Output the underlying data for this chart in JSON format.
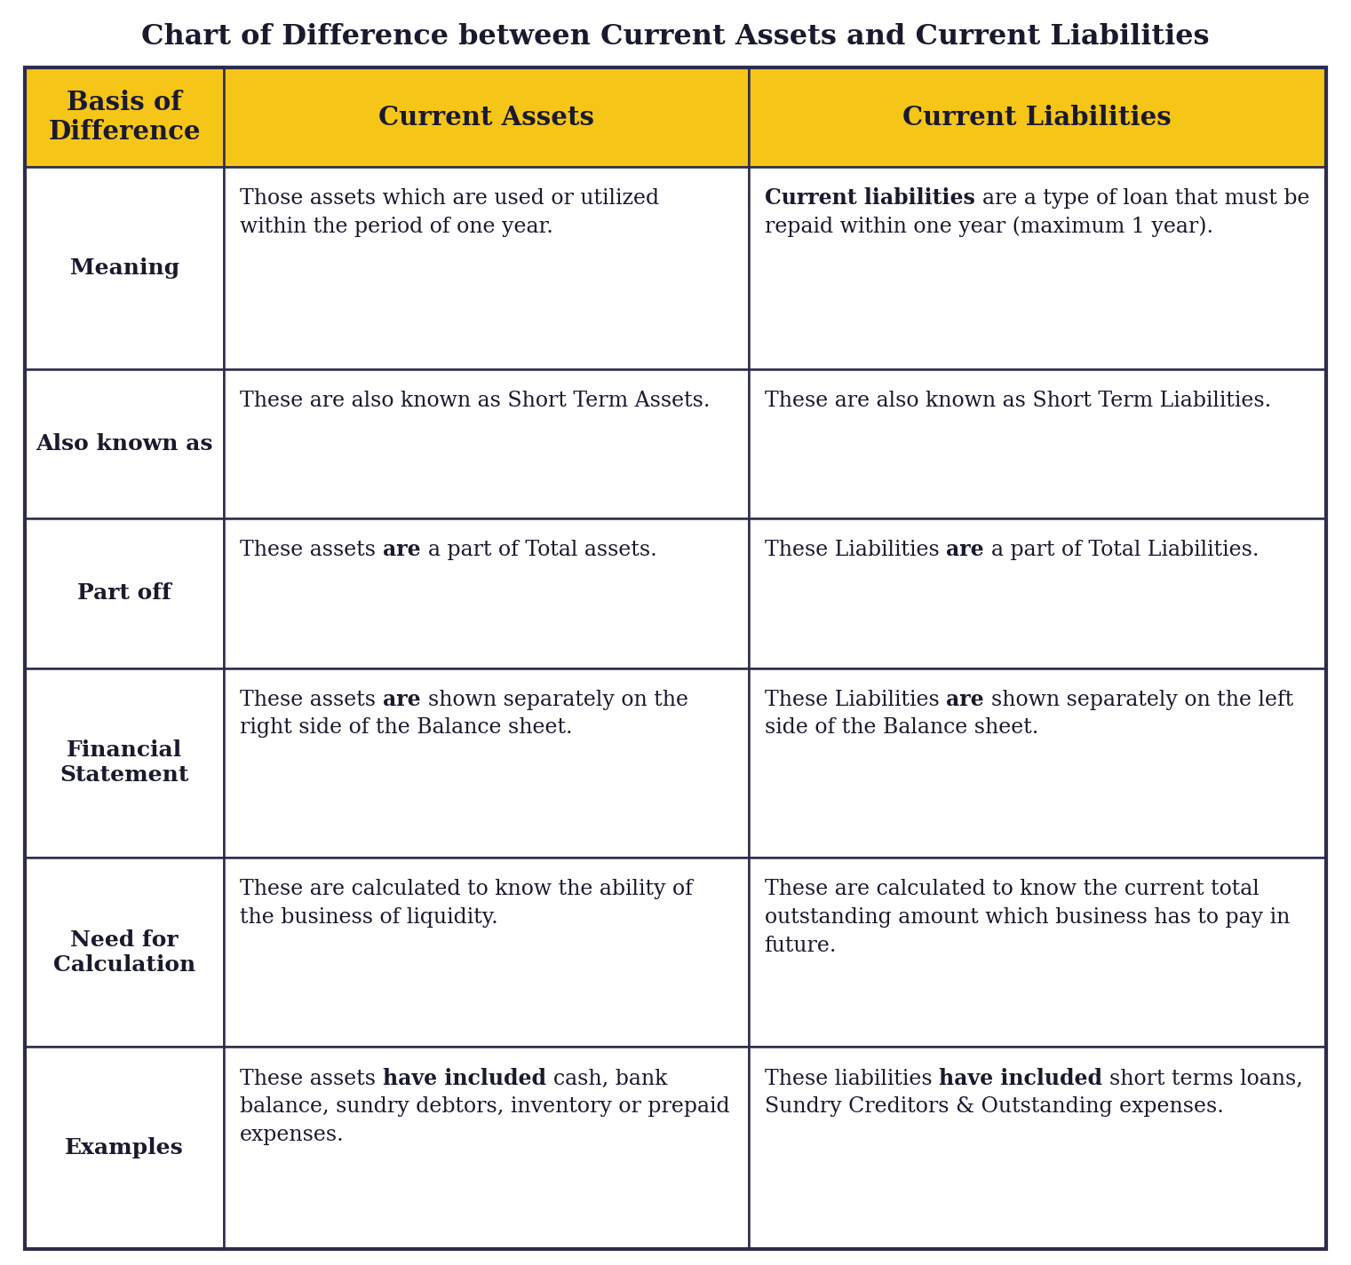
{
  "title": "Chart of Difference between Current Assets and Current Liabilities",
  "title_color": "#1a1a2e",
  "header_bg": "#f5c518",
  "header_text_color": "#1a1a2e",
  "row_bg": "#ffffff",
  "border_color": "#2c2c4a",
  "col_headers": [
    "Basis of\nDifference",
    "Current Assets",
    "Current Liabilities"
  ],
  "rows": [
    {
      "label": "Meaning",
      "col1": [
        [
          "Those assets which are used or utilized within the period of one year.",
          false
        ]
      ],
      "col2": [
        [
          "Current liabilities",
          true
        ],
        [
          " are a type of loan that must be repaid within one year (maximum 1 year).",
          false
        ]
      ]
    },
    {
      "label": "Also known as",
      "col1": [
        [
          "These are also known as Short Term Assets.",
          false
        ]
      ],
      "col2": [
        [
          "These are also known as Short Term Liabilities.",
          false
        ]
      ]
    },
    {
      "label": "Part off",
      "col1": [
        [
          "These assets ",
          false
        ],
        [
          "are",
          true
        ],
        [
          " a part of Total assets.",
          false
        ]
      ],
      "col2": [
        [
          "These Liabilities ",
          false
        ],
        [
          "are",
          true
        ],
        [
          " a part of Total Liabilities.",
          false
        ]
      ]
    },
    {
      "label": "Financial\nStatement",
      "col1": [
        [
          "These assets ",
          false
        ],
        [
          "are",
          true
        ],
        [
          " shown separately on the right side of the Balance sheet.",
          false
        ]
      ],
      "col2": [
        [
          "These Liabilities ",
          false
        ],
        [
          "are",
          true
        ],
        [
          " shown separately on the left side of the Balance sheet.",
          false
        ]
      ]
    },
    {
      "label": "Need for\nCalculation",
      "col1": [
        [
          "These are calculated to know the ability of the business of liquidity.",
          false
        ]
      ],
      "col2": [
        [
          "These are calculated to know the current total outstanding amount which business has to pay in future.",
          false
        ]
      ]
    },
    {
      "label": "Examples",
      "col1": [
        [
          "These assets ",
          false
        ],
        [
          "have included",
          true
        ],
        [
          " cash, bank balance, sundry debtors, inventory or prepaid expenses.",
          false
        ]
      ],
      "col2": [
        [
          "These liabilities ",
          false
        ],
        [
          "have included",
          true
        ],
        [
          " short terms loans, Sundry Creditors & Outstanding expenses.",
          false
        ]
      ]
    }
  ],
  "fig_width": 15.21,
  "fig_height": 14.25,
  "dpi": 100,
  "title_fontsize": 23,
  "header_fontsize": 21,
  "cell_fontsize": 17,
  "label_fontsize": 18
}
